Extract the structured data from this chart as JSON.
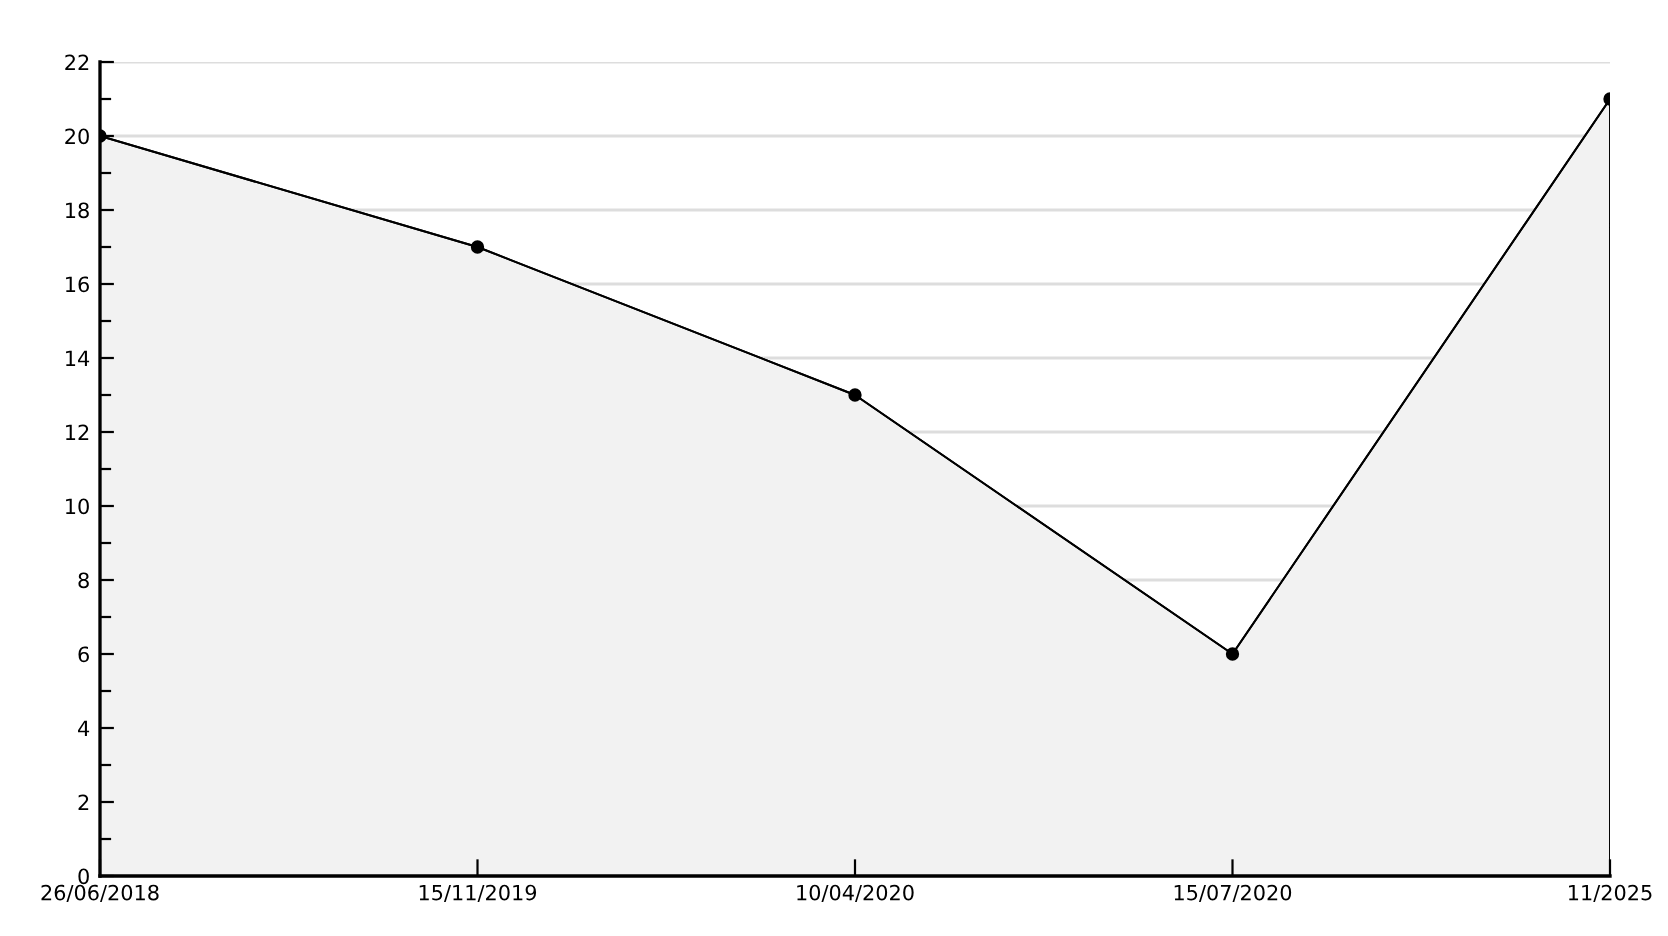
{
  "chart_data": {
    "type": "area",
    "categories": [
      "26/06/2018",
      "15/11/2019",
      "10/04/2020",
      "15/07/2020",
      "11/2025"
    ],
    "series": [
      {
        "color": "#f2f2f2",
        "values": [
          20,
          17,
          13,
          6,
          21
        ]
      }
    ],
    "ylim": [
      0,
      22
    ],
    "yticks": [
      0,
      2,
      4,
      6,
      8,
      10,
      12,
      14,
      16,
      18,
      20,
      22
    ],
    "grid": "y",
    "marker": "circle",
    "line_style": "solid"
  }
}
